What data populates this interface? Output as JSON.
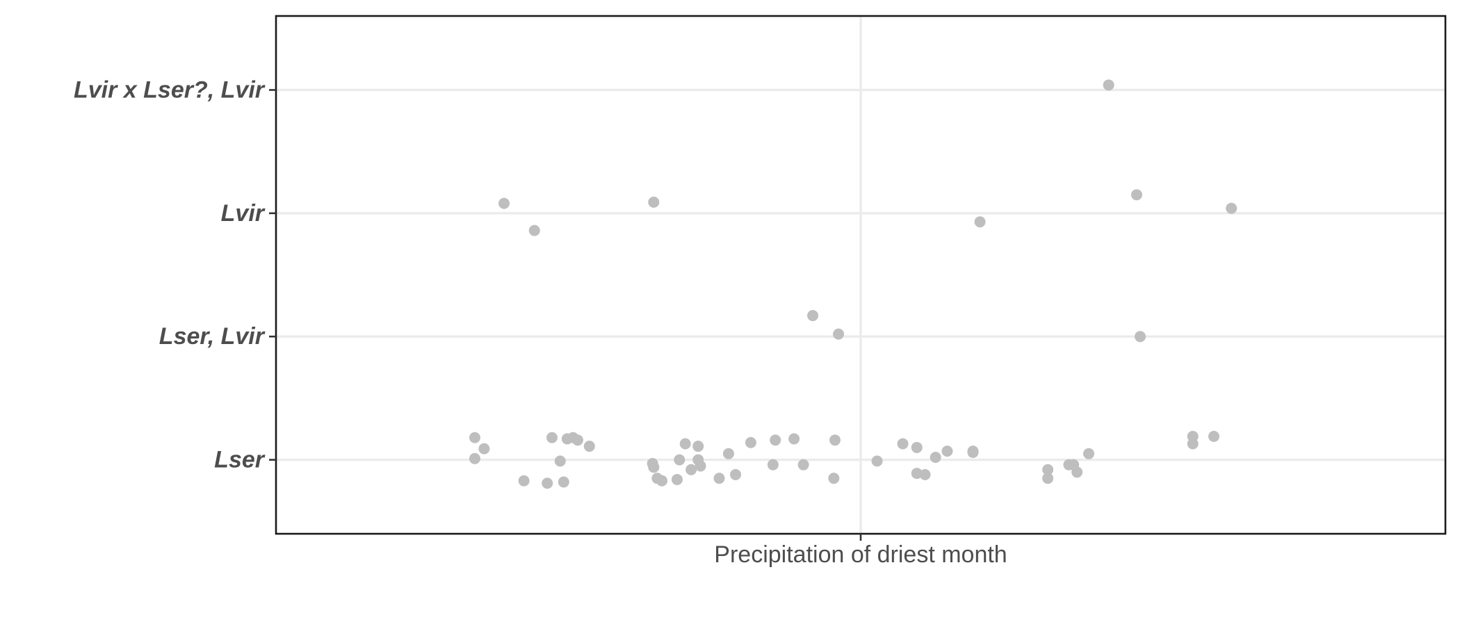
{
  "chart_data": {
    "type": "scatter",
    "title": "",
    "xlabel": "",
    "ylabel": "",
    "x_categories": [
      "Precipitation of driest month"
    ],
    "y_categories": [
      "Lser",
      "Lser, Lvir",
      "Lvir",
      "Lvir x Lser?, Lvir"
    ],
    "xlim": [
      0.5,
      1.5
    ],
    "ylim": [
      0.4,
      4.6
    ],
    "grid": true,
    "legend": "none",
    "colors": {
      "point": "#bebebe",
      "grid": "#ebebeb",
      "border": "#1a1a1a",
      "label": "#4d4d4d"
    },
    "series": [
      {
        "points": [
          {
            "x": 1.212,
            "y": 4.04
          },
          {
            "x": 0.695,
            "y": 3.08
          },
          {
            "x": 0.721,
            "y": 2.86
          },
          {
            "x": 0.823,
            "y": 3.09
          },
          {
            "x": 1.102,
            "y": 2.93
          },
          {
            "x": 1.236,
            "y": 3.15
          },
          {
            "x": 1.317,
            "y": 3.04
          },
          {
            "x": 0.959,
            "y": 2.17
          },
          {
            "x": 0.981,
            "y": 2.02
          },
          {
            "x": 1.239,
            "y": 2.0
          },
          {
            "x": 0.67,
            "y": 1.18
          },
          {
            "x": 0.67,
            "y": 1.01
          },
          {
            "x": 0.678,
            "y": 1.09
          },
          {
            "x": 0.712,
            "y": 0.83
          },
          {
            "x": 0.732,
            "y": 0.81
          },
          {
            "x": 0.746,
            "y": 0.82
          },
          {
            "x": 0.736,
            "y": 1.18
          },
          {
            "x": 0.743,
            "y": 0.99
          },
          {
            "x": 0.749,
            "y": 1.17
          },
          {
            "x": 0.754,
            "y": 1.18
          },
          {
            "x": 0.758,
            "y": 1.16
          },
          {
            "x": 0.768,
            "y": 1.11
          },
          {
            "x": 0.822,
            "y": 0.97
          },
          {
            "x": 0.823,
            "y": 0.94
          },
          {
            "x": 0.826,
            "y": 0.85
          },
          {
            "x": 0.83,
            "y": 0.83
          },
          {
            "x": 0.843,
            "y": 0.84
          },
          {
            "x": 0.845,
            "y": 1.0
          },
          {
            "x": 0.85,
            "y": 1.13
          },
          {
            "x": 0.855,
            "y": 0.92
          },
          {
            "x": 0.861,
            "y": 1.0
          },
          {
            "x": 0.863,
            "y": 0.95
          },
          {
            "x": 0.861,
            "y": 1.11
          },
          {
            "x": 0.879,
            "y": 0.85
          },
          {
            "x": 0.887,
            "y": 1.05
          },
          {
            "x": 0.893,
            "y": 0.88
          },
          {
            "x": 0.906,
            "y": 1.14
          },
          {
            "x": 0.925,
            "y": 0.96
          },
          {
            "x": 0.927,
            "y": 1.16
          },
          {
            "x": 0.951,
            "y": 0.96
          },
          {
            "x": 0.943,
            "y": 1.17
          },
          {
            "x": 0.977,
            "y": 0.85
          },
          {
            "x": 0.978,
            "y": 1.16
          },
          {
            "x": 1.014,
            "y": 0.99
          },
          {
            "x": 1.036,
            "y": 1.13
          },
          {
            "x": 1.048,
            "y": 1.1
          },
          {
            "x": 1.048,
            "y": 0.89
          },
          {
            "x": 1.055,
            "y": 0.88
          },
          {
            "x": 1.064,
            "y": 1.02
          },
          {
            "x": 1.074,
            "y": 1.07
          },
          {
            "x": 1.096,
            "y": 1.07
          },
          {
            "x": 1.096,
            "y": 1.06
          },
          {
            "x": 1.16,
            "y": 0.92
          },
          {
            "x": 1.16,
            "y": 0.85
          },
          {
            "x": 1.178,
            "y": 0.96
          },
          {
            "x": 1.182,
            "y": 0.96
          },
          {
            "x": 1.185,
            "y": 0.9
          },
          {
            "x": 1.195,
            "y": 1.05
          },
          {
            "x": 1.284,
            "y": 1.13
          },
          {
            "x": 1.284,
            "y": 1.19
          },
          {
            "x": 1.302,
            "y": 1.19
          }
        ]
      }
    ]
  }
}
